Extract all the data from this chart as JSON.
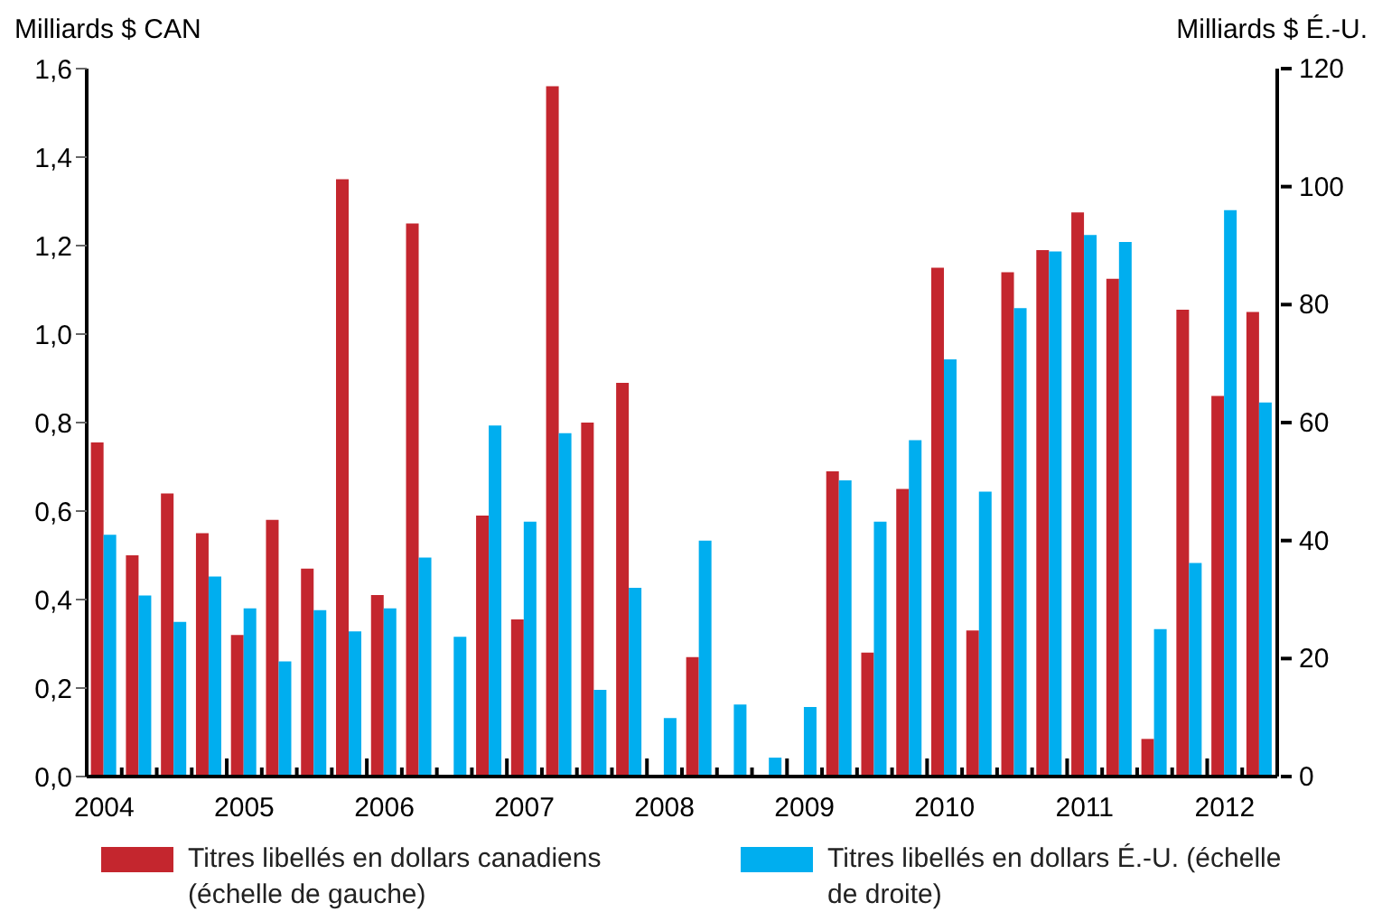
{
  "chart_data": {
    "type": "bar",
    "ylabel": "Milliards $ CAN",
    "y2label": "Milliards $ É.-U.",
    "categories": [
      "2004",
      null,
      null,
      null,
      "2005",
      null,
      null,
      null,
      "2006",
      null,
      null,
      null,
      "2007",
      null,
      null,
      null,
      "2008",
      null,
      null,
      null,
      "2009",
      null,
      null,
      null,
      "2010",
      null,
      null,
      null,
      "2011",
      null,
      null,
      null,
      "2012",
      null
    ],
    "series": [
      {
        "name": "Titres libellés en dollars canadiens (échelle de gauche)",
        "color": "#c4262e",
        "axis": "y",
        "values": [
          0.755,
          0.5,
          0.64,
          0.55,
          0.32,
          0.58,
          0.47,
          1.35,
          0.41,
          1.25,
          null,
          0.59,
          0.355,
          1.56,
          0.8,
          0.89,
          null,
          0.27,
          null,
          null,
          null,
          0.69,
          0.28,
          0.65,
          1.15,
          0.33,
          1.14,
          1.19,
          1.275,
          1.125,
          0.085,
          1.055,
          0.86,
          1.05
        ]
      },
      {
        "name": "Titres libellés en dollars É.-U. (échelle de droite)",
        "color": "#00aeef",
        "axis": "y2",
        "values": [
          41,
          30.7,
          26.2,
          33.9,
          28.5,
          19.5,
          28.2,
          24.6,
          28.5,
          37.1,
          23.7,
          59.5,
          43.2,
          58.2,
          14.7,
          32,
          9.9,
          40,
          12.2,
          3.2,
          11.8,
          50.2,
          43.2,
          57,
          70.7,
          48.3,
          79.4,
          89,
          91.8,
          90.6,
          25,
          36.2,
          96,
          63.4
        ]
      }
    ],
    "ylim": [
      0,
      1.6
    ],
    "yticks": [
      {
        "value": 0,
        "label": "0,0"
      },
      {
        "value": 0.2,
        "label": "0,2"
      },
      {
        "value": 0.4,
        "label": "0,4"
      },
      {
        "value": 0.6,
        "label": "0,6"
      },
      {
        "value": 0.8,
        "label": "0,8"
      },
      {
        "value": 1,
        "label": "1,0"
      },
      {
        "value": 1.2,
        "label": "1,2"
      },
      {
        "value": 1.4,
        "label": "1,4"
      },
      {
        "value": 1.6,
        "label": "1,6"
      }
    ],
    "y2lim": [
      0,
      120
    ],
    "y2ticks": [
      0,
      20,
      40,
      60,
      80,
      100,
      120
    ],
    "grid": false,
    "legend": "bottom"
  }
}
